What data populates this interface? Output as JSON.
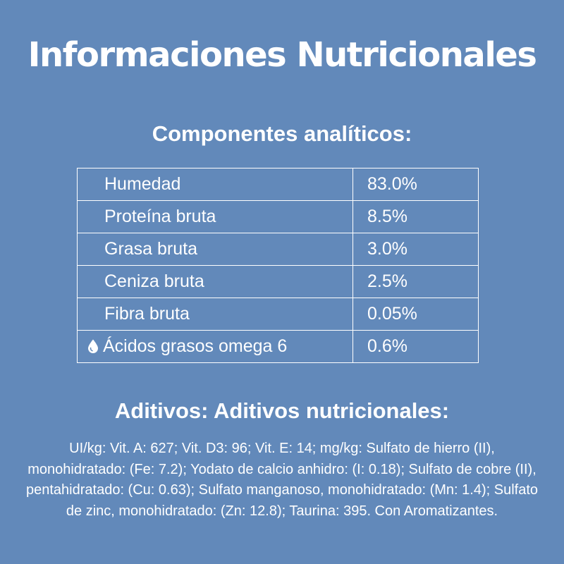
{
  "title": "Informaciones Nutricionales",
  "components": {
    "heading": "Componentes analíticos:",
    "rows": [
      {
        "name": "Humedad",
        "value": "83.0%",
        "icon": ""
      },
      {
        "name": "Proteína bruta",
        "value": "8.5%",
        "icon": ""
      },
      {
        "name": "Grasa bruta",
        "value": "3.0%",
        "icon": ""
      },
      {
        "name": "Ceniza bruta",
        "value": "2.5%",
        "icon": ""
      },
      {
        "name": "Fibra bruta",
        "value": "0.05%",
        "icon": ""
      },
      {
        "name": "Ácidos grasos omega 6",
        "value": "0.6%",
        "icon": "water-drop-icon"
      }
    ]
  },
  "additives": {
    "heading": "Aditivos: Aditivos nutricionales:",
    "text": "UI/kg: Vit. A: 627; Vit. D3: 96; Vit. E: 14; mg/kg: Sulfato de hierro (II), monohidratado: (Fe: 7.2); Yodato de calcio anhidro: (I: 0.18); Sulfato de cobre (II), pentahidratado: (Cu: 0.63); Sulfato manganoso, monohidratado: (Mn: 1.4); Sulfato de zinc, monohidratado: (Zn: 12.8); Taurina: 395. Con Aromatizantes."
  },
  "colors": {
    "background": "#6289ba",
    "text": "#ffffff"
  }
}
